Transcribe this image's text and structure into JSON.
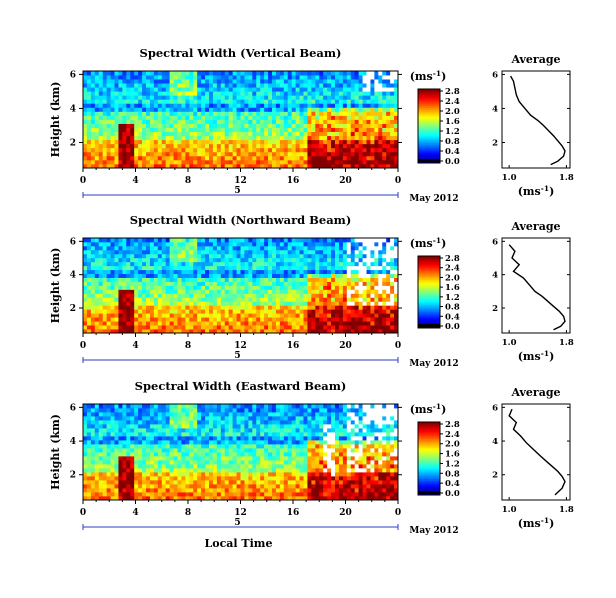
{
  "chart_data": [
    {
      "type": "heatmap",
      "title": "Spectral Width (Vertical Beam)",
      "ylabel": "Height (km)",
      "yticks": [
        "2",
        "4",
        "6"
      ],
      "ylim": [
        0.5,
        6.2
      ],
      "xticks": [
        "0",
        "4",
        "8",
        "12",
        "16",
        "20",
        "0"
      ],
      "date_tick": "5",
      "date_label": "May 2012",
      "colorbar": {
        "unit": "(ms",
        "unit_exp": "-1",
        "unit_close": ")",
        "ticks": [
          "0.0",
          "0.4",
          "0.8",
          "1.2",
          "1.6",
          "2.0",
          "2.4",
          "2.8"
        ],
        "range": [
          0.0,
          2.8
        ]
      },
      "profile": {
        "title": "Average",
        "xlabel": "(ms",
        "xlabel_exp": "-1",
        "xlabel_close": ")",
        "xticks": [
          "1.0",
          "1.8"
        ],
        "yticks": [
          "2",
          "4",
          "6"
        ],
        "xlim": [
          0.9,
          1.85
        ],
        "ylim": [
          0.5,
          6.2
        ],
        "x": [
          1.02,
          1.06,
          1.08,
          1.1,
          1.14,
          1.22,
          1.3,
          1.4,
          1.48,
          1.55,
          1.62,
          1.68,
          1.74,
          1.78,
          1.76,
          1.68,
          1.58
        ],
        "y": [
          5.9,
          5.6,
          5.2,
          4.8,
          4.4,
          4.0,
          3.6,
          3.3,
          3.0,
          2.7,
          2.4,
          2.1,
          1.8,
          1.5,
          1.2,
          0.9,
          0.7
        ]
      }
    },
    {
      "type": "heatmap",
      "title": "Spectral Width (Northward Beam)",
      "ylabel": "Height (km)",
      "yticks": [
        "2",
        "4",
        "6"
      ],
      "ylim": [
        0.5,
        6.2
      ],
      "xticks": [
        "0",
        "4",
        "8",
        "12",
        "16",
        "20",
        "0"
      ],
      "date_tick": "5",
      "date_label": "May 2012",
      "colorbar": {
        "unit": "(ms",
        "unit_exp": "-1",
        "unit_close": ")",
        "ticks": [
          "0.0",
          "0.4",
          "0.8",
          "1.2",
          "1.6",
          "2.0",
          "2.4",
          "2.8"
        ],
        "range": [
          0.0,
          2.8
        ]
      },
      "profile": {
        "title": "Average",
        "xlabel": "(ms",
        "xlabel_exp": "-1",
        "xlabel_close": ")",
        "xticks": [
          "1.0",
          "1.8"
        ],
        "yticks": [
          "2",
          "4",
          "6"
        ],
        "xlim": [
          0.9,
          1.85
        ],
        "ylim": [
          0.5,
          6.2
        ],
        "x": [
          1.0,
          1.08,
          1.04,
          1.14,
          1.06,
          1.2,
          1.28,
          1.36,
          1.46,
          1.54,
          1.62,
          1.7,
          1.76,
          1.78,
          1.72,
          1.62
        ],
        "y": [
          5.8,
          5.4,
          5.0,
          4.6,
          4.2,
          3.8,
          3.4,
          3.0,
          2.7,
          2.4,
          2.1,
          1.8,
          1.5,
          1.2,
          0.9,
          0.7
        ]
      }
    },
    {
      "type": "heatmap",
      "title": "Spectral Width (Eastward Beam)",
      "ylabel": "Height (km)",
      "yticks": [
        "2",
        "4",
        "6"
      ],
      "ylim": [
        0.5,
        6.2
      ],
      "xticks": [
        "0",
        "4",
        "8",
        "12",
        "16",
        "20",
        "0"
      ],
      "date_tick": "5",
      "date_label": "May 2012",
      "xlabel": "Local Time",
      "colorbar": {
        "unit": "(ms",
        "unit_exp": "-1",
        "unit_close": ")",
        "ticks": [
          "0.0",
          "0.4",
          "0.8",
          "1.2",
          "1.6",
          "2.0",
          "2.4",
          "2.8"
        ],
        "range": [
          0.0,
          2.8
        ]
      },
      "profile": {
        "title": "Average",
        "xlabel": "(ms",
        "xlabel_exp": "-1",
        "xlabel_close": ")",
        "xticks": [
          "1.0",
          "1.8"
        ],
        "yticks": [
          "2",
          "4",
          "6"
        ],
        "xlim": [
          0.9,
          1.85
        ],
        "ylim": [
          0.5,
          6.2
        ],
        "x": [
          1.04,
          1.0,
          1.1,
          1.06,
          1.16,
          1.24,
          1.34,
          1.44,
          1.52,
          1.6,
          1.68,
          1.74,
          1.78,
          1.74,
          1.64
        ],
        "y": [
          5.9,
          5.5,
          5.1,
          4.7,
          4.3,
          3.9,
          3.5,
          3.1,
          2.8,
          2.5,
          2.2,
          1.9,
          1.6,
          1.2,
          0.8
        ]
      }
    }
  ]
}
